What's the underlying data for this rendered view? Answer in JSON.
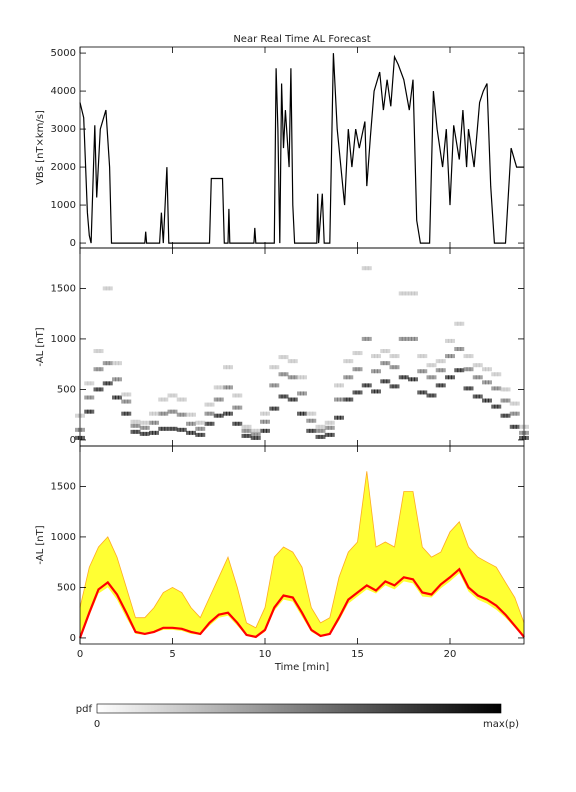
{
  "chart_data": [
    {
      "type": "line",
      "title": "Near Real Time AL Forecast",
      "ylabel": "VBs [nT×km/s]",
      "color": "#000000",
      "x": [
        0,
        0.2,
        0.4,
        0.5,
        0.6,
        0.8,
        0.9,
        1.1,
        1.4,
        1.6,
        1.7,
        3.5,
        3.55,
        3.6,
        4.3,
        4.4,
        4.5,
        4.6,
        4.7,
        4.8,
        7.0,
        7.1,
        7.7,
        7.8,
        8.0,
        8.05,
        8.1,
        9.4,
        9.45,
        9.5,
        10.5,
        10.6,
        10.7,
        10.8,
        10.9,
        11.0,
        11.1,
        11.3,
        11.4,
        11.5,
        11.6,
        12.2,
        12.8,
        12.85,
        12.9,
        13.1,
        13.2,
        13.5,
        13.7,
        13.9,
        14.1,
        14.3,
        14.5,
        14.7,
        14.9,
        15.1,
        15.4,
        15.5,
        15.7,
        15.9,
        16.2,
        16.4,
        16.6,
        16.8,
        17.0,
        17.2,
        17.5,
        17.8,
        18.0,
        18.2,
        18.4,
        18.9,
        19.1,
        19.3,
        19.6,
        19.8,
        20.0,
        20.2,
        20.5,
        20.7,
        20.9,
        21.0,
        21.3,
        21.6,
        21.8,
        22.0,
        22.2,
        22.4,
        23.0,
        23.3,
        23.6,
        24.0
      ],
      "values": [
        3700,
        3300,
        800,
        200,
        0,
        3100,
        1200,
        3000,
        3500,
        2000,
        0,
        0,
        300,
        0,
        0,
        800,
        0,
        1000,
        2000,
        0,
        0,
        1700,
        1700,
        0,
        0,
        900,
        0,
        0,
        400,
        0,
        0,
        4600,
        3000,
        0,
        4200,
        2500,
        3500,
        2000,
        4600,
        1000,
        0,
        0,
        0,
        1300,
        0,
        1300,
        0,
        0,
        5000,
        3000,
        2000,
        1000,
        3000,
        2000,
        3000,
        2500,
        3200,
        1500,
        2800,
        4000,
        4500,
        3500,
        4300,
        3600,
        4900,
        4700,
        4300,
        3500,
        4300,
        600,
        0,
        0,
        4000,
        3000,
        2000,
        3000,
        1000,
        3100,
        2200,
        3500,
        2000,
        3000,
        2000,
        3700,
        4000,
        4200,
        1500,
        0,
        0,
        2500,
        2000,
        2000
      ],
      "xlim": [
        0,
        24
      ],
      "ylim": [
        -130,
        5160
      ],
      "yticks": [
        0,
        1000,
        2000,
        3000,
        4000,
        5000
      ]
    },
    {
      "type": "scatter",
      "ylabel": "-AL [nT]",
      "x": [
        0,
        0.5,
        1,
        1.5,
        2,
        2.5,
        3,
        3.5,
        4,
        4.5,
        5,
        5.5,
        6,
        6.5,
        7,
        7.5,
        8,
        8.5,
        9,
        9.5,
        10,
        10.5,
        11,
        11.5,
        12,
        12.5,
        13,
        13.5,
        14,
        14.5,
        15,
        15.5,
        16,
        16.5,
        17,
        17.5,
        18,
        18.5,
        19,
        19.5,
        20,
        20.5,
        21,
        21.5,
        22,
        22.5,
        23,
        23.5,
        24
      ],
      "series": [
        {
          "color": "#000000",
          "values": [
            20,
            280,
            500,
            560,
            420,
            260,
            80,
            60,
            70,
            110,
            110,
            100,
            70,
            50,
            160,
            240,
            260,
            160,
            40,
            20,
            90,
            310,
            430,
            400,
            260,
            90,
            30,
            50,
            220,
            400,
            470,
            540,
            480,
            580,
            530,
            620,
            600,
            470,
            440,
            540,
            620,
            690,
            510,
            430,
            390,
            330,
            240,
            130,
            20
          ]
        },
        {
          "color": "#666666",
          "values": [
            100,
            420,
            700,
            760,
            600,
            380,
            140,
            120,
            170,
            260,
            280,
            250,
            160,
            110,
            260,
            400,
            520,
            320,
            90,
            60,
            180,
            540,
            650,
            620,
            460,
            190,
            90,
            120,
            400,
            620,
            700,
            1000,
            680,
            760,
            720,
            1000,
            1000,
            680,
            620,
            690,
            830,
            900,
            700,
            620,
            570,
            510,
            390,
            260,
            70
          ]
        },
        {
          "color": "#bbbbbb",
          "values": [
            240,
            560,
            880,
            1500,
            760,
            450,
            180,
            170,
            260,
            400,
            440,
            400,
            250,
            170,
            350,
            520,
            720,
            440,
            130,
            90,
            260,
            720,
            820,
            780,
            620,
            260,
            130,
            170,
            540,
            780,
            860,
            1700,
            830,
            880,
            830,
            1450,
            1450,
            830,
            740,
            780,
            980,
            1150,
            830,
            740,
            700,
            650,
            500,
            360,
            130
          ]
        }
      ],
      "xlim": [
        0,
        24
      ],
      "ylim": [
        -60,
        1900
      ],
      "yticks": [
        0,
        500,
        1000,
        1500
      ]
    },
    {
      "type": "band",
      "ylabel": "-AL [nT]",
      "xlabel": "Time [min]",
      "x": [
        0,
        0.5,
        1,
        1.5,
        2,
        2.5,
        3,
        3.5,
        4,
        4.5,
        5,
        5.5,
        6,
        6.5,
        7,
        7.5,
        8,
        8.5,
        9,
        9.5,
        10,
        10.5,
        11,
        11.5,
        12,
        12.5,
        13,
        13.5,
        14,
        14.5,
        15,
        15.5,
        16,
        16.5,
        17,
        17.5,
        18,
        18.5,
        19,
        19.5,
        20,
        20.5,
        21,
        21.5,
        22,
        22.5,
        23,
        23.5,
        24
      ],
      "band": {
        "color": "#ffff33",
        "edge": "#ffaa22",
        "upper": [
          300,
          700,
          900,
          1000,
          800,
          500,
          200,
          200,
          300,
          450,
          500,
          450,
          300,
          200,
          400,
          600,
          800,
          500,
          150,
          100,
          300,
          800,
          900,
          850,
          700,
          300,
          150,
          200,
          600,
          850,
          950,
          1650,
          900,
          950,
          900,
          1450,
          1450,
          900,
          800,
          850,
          1050,
          1150,
          900,
          800,
          750,
          700,
          550,
          400,
          150
        ],
        "lower": [
          0,
          220,
          440,
          500,
          380,
          200,
          40,
          30,
          50,
          80,
          80,
          70,
          40,
          30,
          120,
          200,
          220,
          120,
          20,
          0,
          60,
          270,
          380,
          360,
          210,
          60,
          10,
          30,
          170,
          340,
          410,
          480,
          440,
          520,
          480,
          560,
          540,
          410,
          400,
          490,
          560,
          640,
          460,
          380,
          340,
          280,
          200,
          100,
          0
        ]
      },
      "series": [
        {
          "color": "#ff0000",
          "values": [
            0,
            250,
            480,
            550,
            430,
            250,
            60,
            40,
            60,
            100,
            100,
            90,
            60,
            40,
            150,
            230,
            250,
            150,
            30,
            10,
            80,
            300,
            420,
            400,
            250,
            80,
            20,
            40,
            200,
            380,
            450,
            520,
            470,
            560,
            520,
            600,
            580,
            450,
            430,
            530,
            600,
            680,
            500,
            420,
            380,
            320,
            230,
            120,
            10
          ]
        }
      ],
      "xlim": [
        0,
        24
      ],
      "ylim": [
        -60,
        1900
      ],
      "xticks": [
        0,
        5,
        10,
        15,
        20
      ],
      "yticks": [
        0,
        500,
        1000,
        1500
      ]
    }
  ],
  "colorbar": {
    "label": "pdf",
    "min_label": "0",
    "max_label": "max(p)"
  }
}
